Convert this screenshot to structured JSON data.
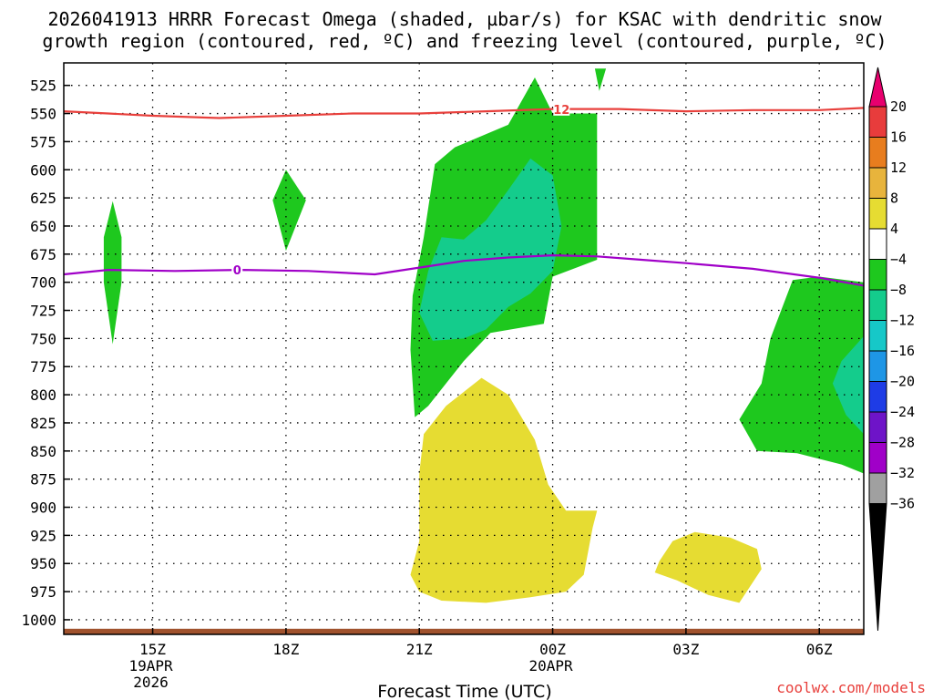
{
  "chart_data": {
    "type": "heatmap",
    "title_line1": "2026041913 HRRR Forecast Omega (shaded, µbar/s) for KSAC with dendritic snow",
    "title_line2": "growth region (contoured, red, ºC) and freezing level (contoured, purple, ºC)",
    "xlabel": "Forecast Time (UTC)",
    "credit": "coolwx.com/models",
    "x_range_hours": [
      13.0,
      31.0
    ],
    "y_range_mb": [
      510,
      1012
    ],
    "y_ticks": [
      525,
      550,
      575,
      600,
      625,
      650,
      675,
      700,
      725,
      750,
      775,
      800,
      825,
      850,
      875,
      900,
      925,
      950,
      975,
      1000
    ],
    "x_ticks": [
      {
        "hour": 15,
        "label": "15Z",
        "sub1": "19APR",
        "sub2": "2026"
      },
      {
        "hour": 18,
        "label": "18Z",
        "sub1": "",
        "sub2": ""
      },
      {
        "hour": 21,
        "label": "21Z",
        "sub1": "",
        "sub2": ""
      },
      {
        "hour": 24,
        "label": "00Z",
        "sub1": "20APR",
        "sub2": ""
      },
      {
        "hour": 27,
        "label": "03Z",
        "sub1": "",
        "sub2": ""
      },
      {
        "hour": 30,
        "label": "06Z",
        "sub1": "",
        "sub2": ""
      }
    ],
    "colorbar": {
      "levels": [
        "20",
        "16",
        "12",
        "8",
        "4",
        "−4",
        "−8",
        "−12",
        "−16",
        "−20",
        "−24",
        "−28",
        "−32",
        "−36"
      ],
      "colors": [
        "#e8006e",
        "#e83c3c",
        "#e87d1e",
        "#e8b43c",
        "#e6dc32",
        "#ffffff",
        "#1ec81e",
        "#14cc8c",
        "#16c8c8",
        "#1e96e6",
        "#1e3ce6",
        "#6e14c8",
        "#a000c8",
        "#a0a0a0",
        "#000000"
      ]
    },
    "contours": [
      {
        "name": "dendritic-growth-12C",
        "label": "12",
        "color": "#e8403c",
        "points": [
          [
            13.0,
            548
          ],
          [
            14.0,
            550
          ],
          [
            15.0,
            552
          ],
          [
            16.5,
            554
          ],
          [
            18.0,
            552
          ],
          [
            19.5,
            550
          ],
          [
            21.0,
            550
          ],
          [
            22.5,
            548
          ],
          [
            24.0,
            546
          ],
          [
            25.5,
            546
          ],
          [
            27.0,
            548
          ],
          [
            28.5,
            547
          ],
          [
            30.0,
            547
          ],
          [
            31.0,
            545
          ]
        ]
      },
      {
        "name": "freezing-level-0C",
        "label": "0",
        "color": "#a000c8",
        "points": [
          [
            13.0,
            693
          ],
          [
            14.0,
            689
          ],
          [
            15.5,
            690
          ],
          [
            17.0,
            689
          ],
          [
            18.5,
            690
          ],
          [
            20.0,
            693
          ],
          [
            21.0,
            687
          ],
          [
            22.0,
            681
          ],
          [
            23.0,
            678
          ],
          [
            24.0,
            676
          ],
          [
            25.0,
            677
          ],
          [
            26.0,
            680
          ],
          [
            27.0,
            683
          ],
          [
            28.5,
            688
          ],
          [
            30.0,
            696
          ],
          [
            31.0,
            703
          ]
        ]
      }
    ],
    "shaded_regions": [
      {
        "name": "omega-neg4-spike-14z",
        "value": "−4",
        "color": "#1ec81e",
        "points": [
          [
            14.1,
            628
          ],
          [
            14.3,
            660
          ],
          [
            14.3,
            700
          ],
          [
            14.1,
            755
          ],
          [
            13.9,
            700
          ],
          [
            13.9,
            660
          ]
        ]
      },
      {
        "name": "omega-neg4-diamond-18z",
        "value": "−4",
        "color": "#1ec81e",
        "points": [
          [
            18.0,
            600
          ],
          [
            18.45,
            627
          ],
          [
            18.0,
            672
          ],
          [
            17.7,
            627
          ]
        ]
      },
      {
        "name": "omega-neg4-main",
        "value": "−4",
        "color": "#1ec81e",
        "points": [
          [
            20.85,
            712
          ],
          [
            21.1,
            660
          ],
          [
            21.35,
            595
          ],
          [
            21.8,
            580
          ],
          [
            22.4,
            570
          ],
          [
            23.0,
            560
          ],
          [
            23.6,
            518
          ],
          [
            24.0,
            550
          ],
          [
            25.0,
            550
          ],
          [
            25.0,
            680
          ],
          [
            24.0,
            695
          ],
          [
            23.8,
            737
          ],
          [
            22.6,
            745
          ],
          [
            22.0,
            770
          ],
          [
            21.2,
            810
          ],
          [
            20.9,
            820
          ],
          [
            20.8,
            760
          ]
        ]
      },
      {
        "name": "omega-neg4-top-sliver",
        "value": "−4",
        "color": "#1ec81e",
        "points": [
          [
            24.95,
            510
          ],
          [
            25.2,
            510
          ],
          [
            25.05,
            530
          ]
        ]
      },
      {
        "name": "omega-neg8-main",
        "value": "−8",
        "color": "#14cc8c",
        "points": [
          [
            21.0,
            727
          ],
          [
            21.2,
            690
          ],
          [
            21.5,
            660
          ],
          [
            22.0,
            662
          ],
          [
            22.5,
            645
          ],
          [
            23.0,
            618
          ],
          [
            23.5,
            590
          ],
          [
            24.0,
            605
          ],
          [
            24.2,
            650
          ],
          [
            24.0,
            690
          ],
          [
            23.5,
            710
          ],
          [
            23.0,
            722
          ],
          [
            22.5,
            742
          ],
          [
            22.0,
            750
          ],
          [
            21.3,
            752
          ]
        ]
      },
      {
        "name": "omega-neg4-right",
        "value": "−4",
        "color": "#1ec81e",
        "points": [
          [
            31.0,
            700
          ],
          [
            30.0,
            695
          ],
          [
            29.4,
            698
          ],
          [
            28.9,
            750
          ],
          [
            28.7,
            790
          ],
          [
            28.2,
            822
          ],
          [
            28.6,
            850
          ],
          [
            29.5,
            852
          ],
          [
            30.5,
            862
          ],
          [
            31.0,
            870
          ]
        ]
      },
      {
        "name": "omega-neg8-right",
        "value": "−8",
        "color": "#14cc8c",
        "points": [
          [
            31.0,
            748
          ],
          [
            30.5,
            770
          ],
          [
            30.3,
            790
          ],
          [
            30.6,
            818
          ],
          [
            31.0,
            835
          ]
        ]
      },
      {
        "name": "omega-pos4-lower-main",
        "value": "4",
        "color": "#e6dc32",
        "points": [
          [
            21.0,
            870
          ],
          [
            21.1,
            835
          ],
          [
            21.6,
            810
          ],
          [
            22.4,
            785
          ],
          [
            23.0,
            800
          ],
          [
            23.6,
            840
          ],
          [
            23.9,
            880
          ],
          [
            24.3,
            903
          ],
          [
            25.0,
            903
          ],
          [
            24.9,
            918
          ],
          [
            24.7,
            960
          ],
          [
            24.3,
            975
          ],
          [
            23.5,
            980
          ],
          [
            22.5,
            985
          ],
          [
            21.5,
            983
          ],
          [
            21.0,
            975
          ],
          [
            20.8,
            960
          ],
          [
            21.0,
            930
          ]
        ]
      },
      {
        "name": "omega-pos4-lower-right",
        "value": "4",
        "color": "#e6dc32",
        "points": [
          [
            26.4,
            948
          ],
          [
            26.7,
            930
          ],
          [
            27.2,
            922
          ],
          [
            28.0,
            927
          ],
          [
            28.6,
            937
          ],
          [
            28.7,
            955
          ],
          [
            28.2,
            985
          ],
          [
            27.5,
            978
          ],
          [
            26.8,
            965
          ],
          [
            26.3,
            958
          ]
        ]
      }
    ],
    "terrain_color": "#a0522d",
    "terrain_top_mb": 1008
  }
}
